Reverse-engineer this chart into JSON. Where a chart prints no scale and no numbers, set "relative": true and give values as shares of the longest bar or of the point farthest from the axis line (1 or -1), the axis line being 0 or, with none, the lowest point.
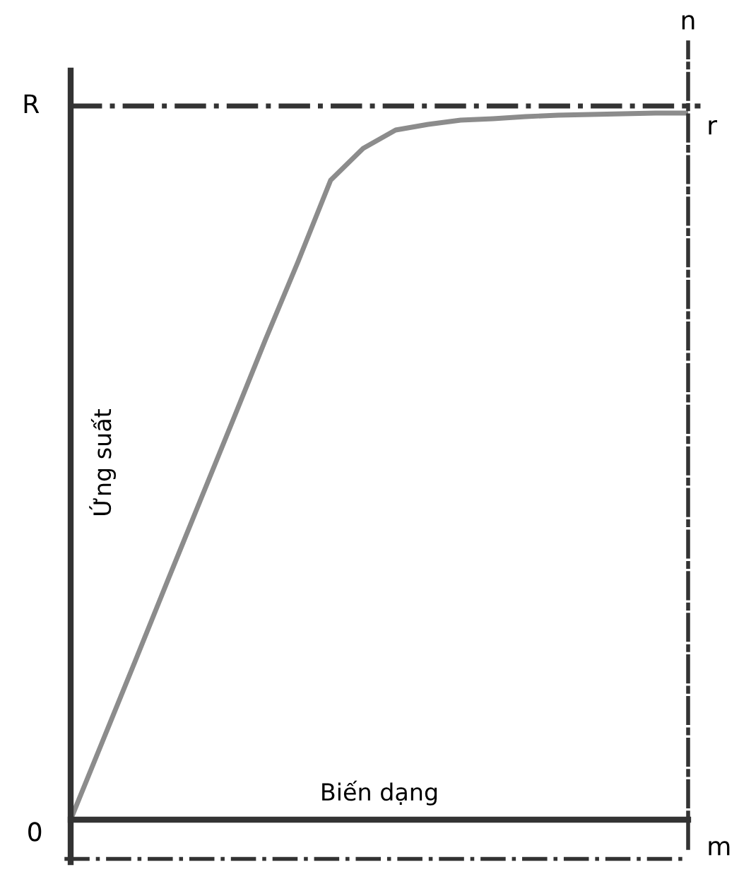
{
  "chart_data": {
    "type": "line",
    "xlabel": "Biến dạng",
    "ylabel": "Ứng suất",
    "relative": true,
    "grid": false,
    "marker": "none",
    "line_style": "solid",
    "categories": [
      null,
      null,
      null,
      null,
      null,
      null,
      null,
      null,
      null,
      null,
      null,
      null,
      null,
      null,
      null,
      null,
      null,
      null,
      null,
      null
    ],
    "series": [
      {
        "color": "#8c8c8c",
        "values": [
          0,
          0.113,
          0.226,
          0.34,
          0.453,
          0.566,
          0.68,
          0.79,
          0.905,
          0.95,
          0.976,
          0.984,
          0.99,
          0.992,
          0.995,
          0.997,
          0.998,
          0.999,
          1.0,
          1.0
        ]
      }
    ],
    "ref_lines": [
      {
        "axis": "y",
        "value": 1.01,
        "label": "R",
        "color": "#333333",
        "line_style": "dashdot"
      }
    ],
    "annotations": [
      "0",
      "n",
      "r",
      "m"
    ]
  }
}
